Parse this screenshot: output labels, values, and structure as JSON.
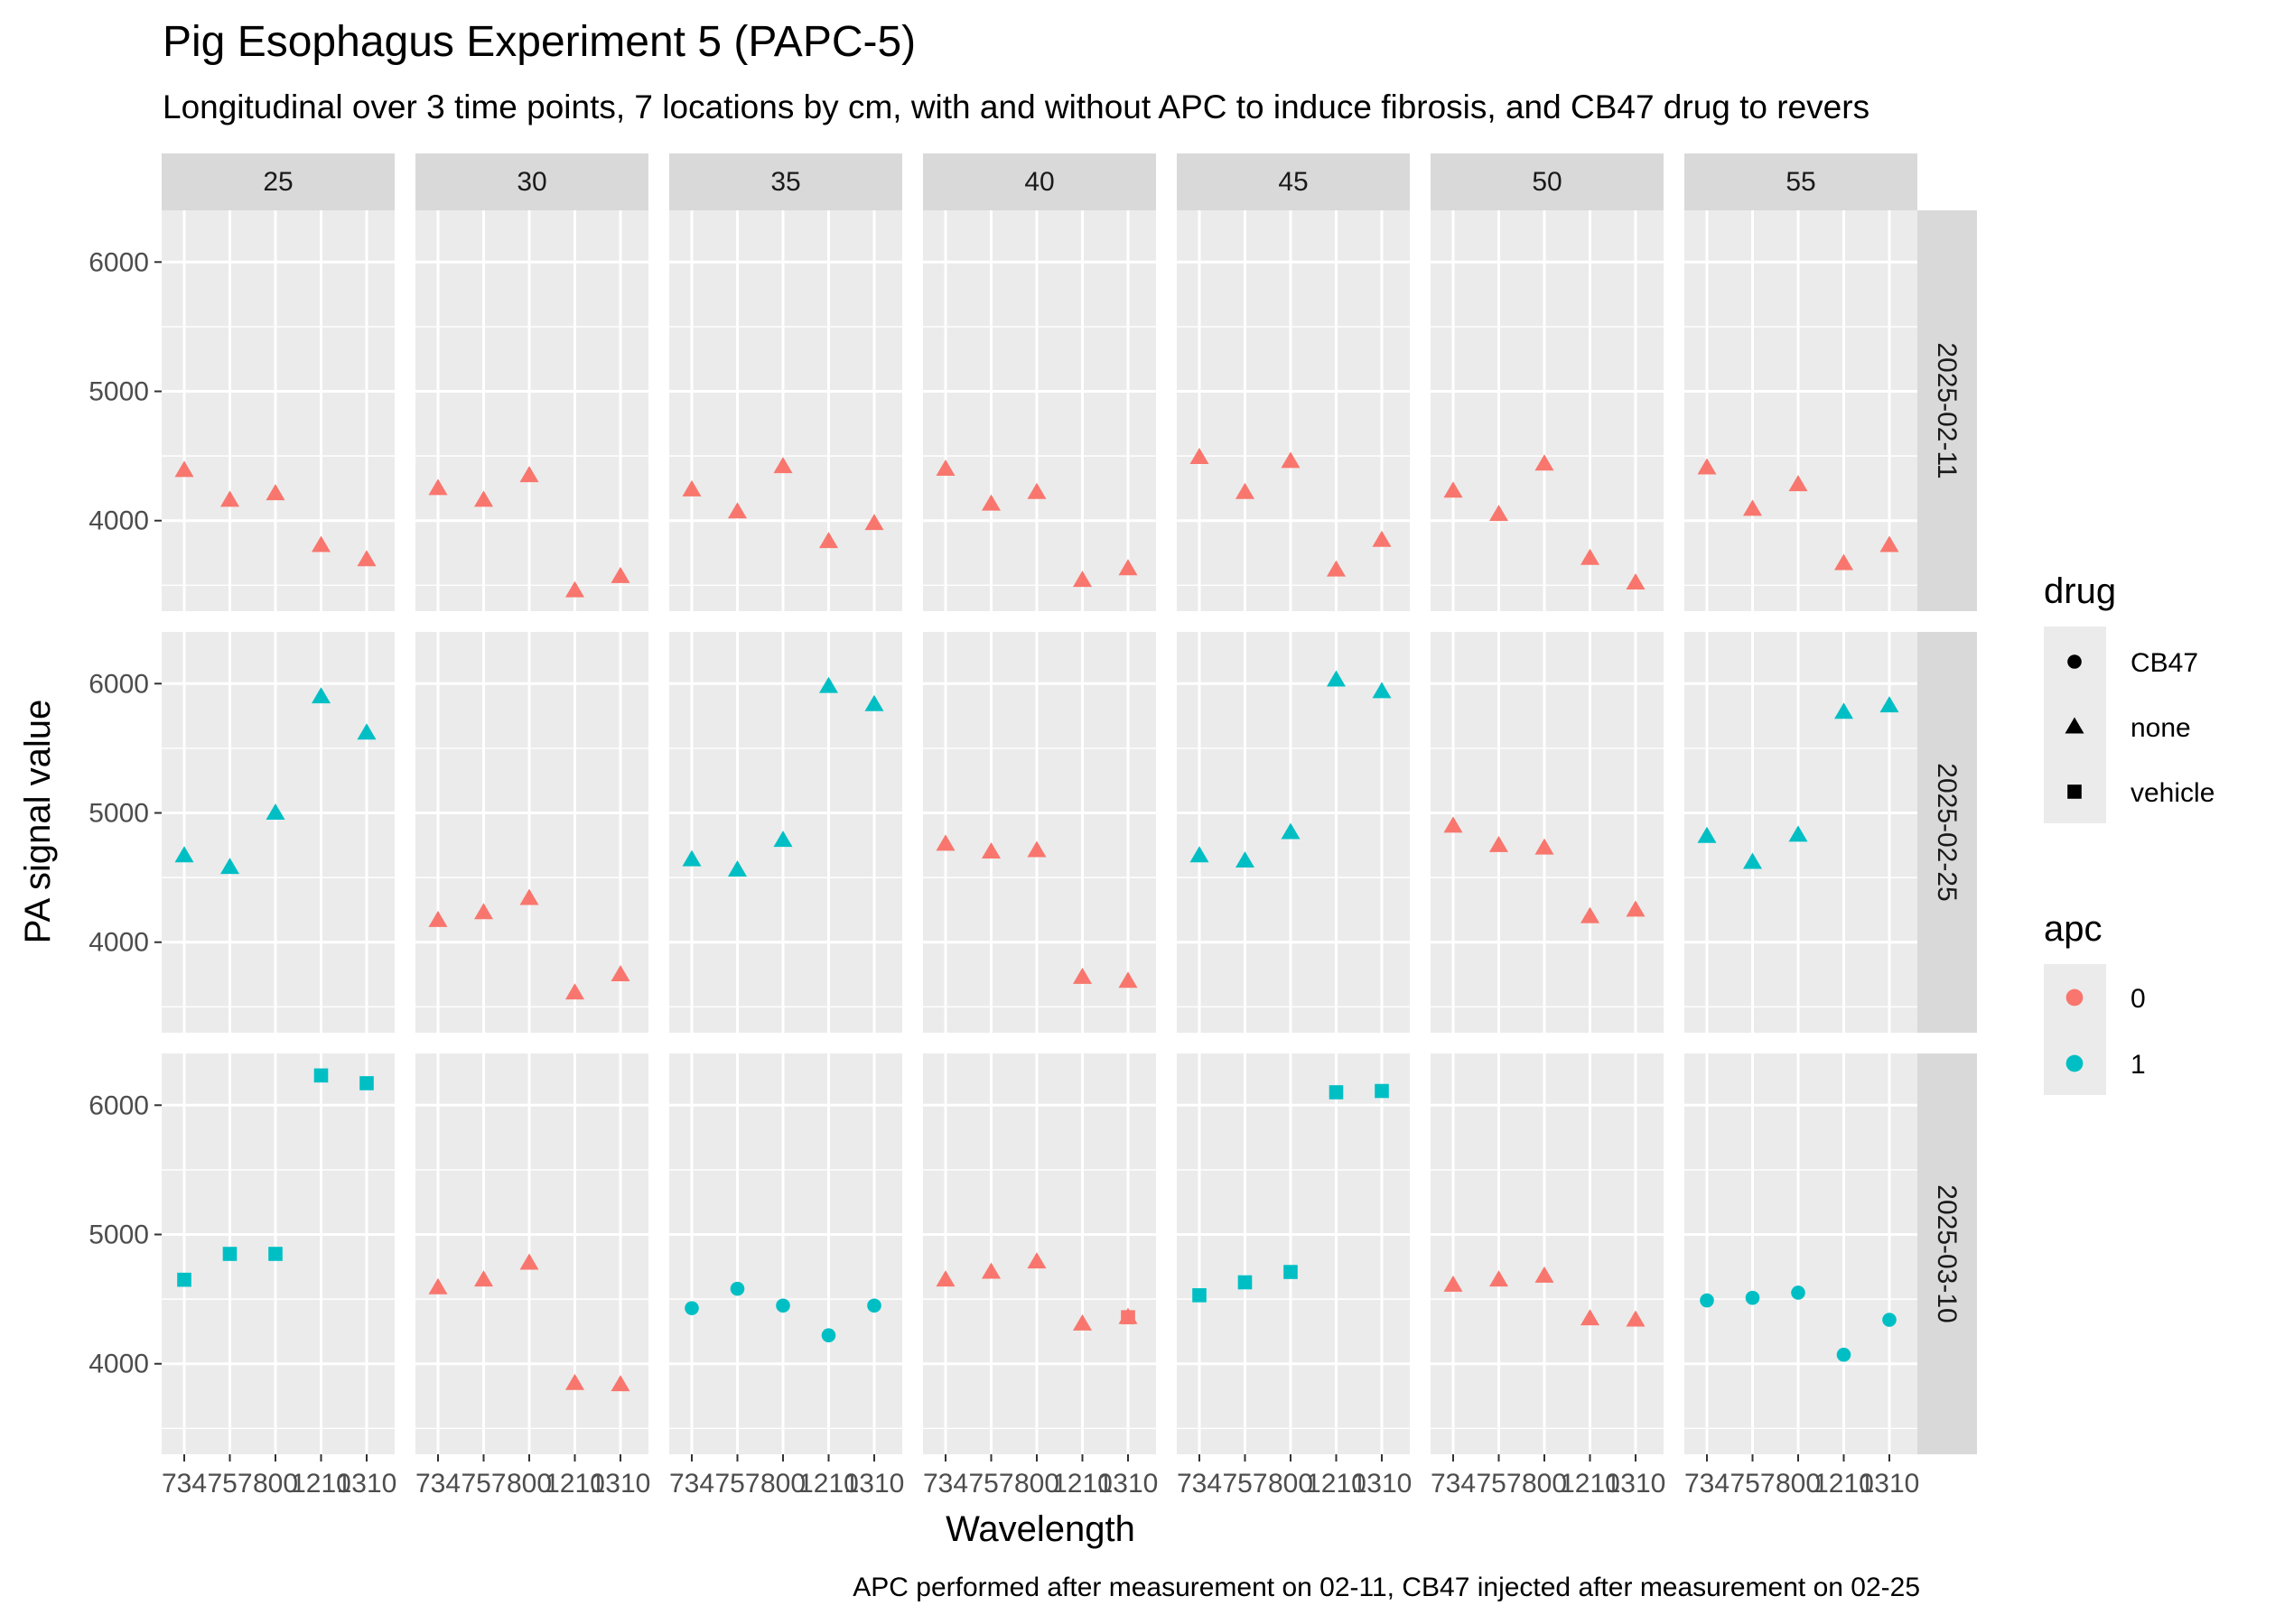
{
  "chart_data": {
    "type": "scatter",
    "title": "Pig Esophagus Experiment 5 (PAPC-5)",
    "subtitle": "Longitudinal over 3 time points, 7 locations by cm, with and without APC to induce fibrosis, and CB47 drug to revers",
    "xlabel": "Wavelength",
    "ylabel": "PA signal value",
    "caption": "APC performed after measurement on 02-11, CB47 injected after measurement on 02-25",
    "x_categories": [
      "734",
      "757",
      "800",
      "1210",
      "1310"
    ],
    "y_ticks": [
      4000,
      5000,
      6000
    ],
    "ylim": [
      3300,
      6400
    ],
    "facet_columns": [
      "25",
      "30",
      "35",
      "40",
      "45",
      "50",
      "55"
    ],
    "facet_rows": [
      "2025-02-11",
      "2025-02-25",
      "2025-03-10"
    ],
    "legend": {
      "drug": {
        "title": "drug",
        "items": [
          {
            "label": "CB47",
            "shape": "circle"
          },
          {
            "label": "none",
            "shape": "triangle"
          },
          {
            "label": "vehicle",
            "shape": "square"
          }
        ]
      },
      "apc": {
        "title": "apc",
        "items": [
          {
            "label": "0",
            "color": "#F8766D"
          },
          {
            "label": "1",
            "color": "#00BFC4"
          }
        ]
      }
    },
    "panels": [
      {
        "row": "2025-02-11",
        "col": "25",
        "apc": "0",
        "drug": "none",
        "values": [
          4390,
          4160,
          4210,
          3810,
          3700
        ]
      },
      {
        "row": "2025-02-11",
        "col": "30",
        "apc": "0",
        "drug": "none",
        "values": [
          4250,
          4160,
          4350,
          3460,
          3570
        ]
      },
      {
        "row": "2025-02-11",
        "col": "35",
        "apc": "0",
        "drug": "none",
        "values": [
          4240,
          4070,
          4420,
          3840,
          3980
        ]
      },
      {
        "row": "2025-02-11",
        "col": "40",
        "apc": "0",
        "drug": "none",
        "values": [
          4400,
          4130,
          4220,
          3540,
          3630
        ]
      },
      {
        "row": "2025-02-11",
        "col": "45",
        "apc": "0",
        "drug": "none",
        "values": [
          4490,
          4220,
          4460,
          3620,
          3850
        ]
      },
      {
        "row": "2025-02-11",
        "col": "50",
        "apc": "0",
        "drug": "none",
        "values": [
          4230,
          4050,
          4440,
          3710,
          3520
        ]
      },
      {
        "row": "2025-02-11",
        "col": "55",
        "apc": "0",
        "drug": "none",
        "values": [
          4410,
          4090,
          4280,
          3670,
          3810
        ]
      },
      {
        "row": "2025-02-25",
        "col": "25",
        "apc": "1",
        "drug": "none",
        "values": [
          4670,
          4580,
          5000,
          5900,
          5620
        ]
      },
      {
        "row": "2025-02-25",
        "col": "30",
        "apc": "0",
        "drug": "none",
        "values": [
          4170,
          4230,
          4340,
          3610,
          3750
        ]
      },
      {
        "row": "2025-02-25",
        "col": "35",
        "apc": "1",
        "drug": "none",
        "values": [
          4640,
          4560,
          4790,
          5980,
          5840
        ]
      },
      {
        "row": "2025-02-25",
        "col": "40",
        "apc": "0",
        "drug": "none",
        "values": [
          4760,
          4700,
          4710,
          3730,
          3700
        ]
      },
      {
        "row": "2025-02-25",
        "col": "45",
        "apc": "1",
        "drug": "none",
        "values": [
          4670,
          4630,
          4850,
          6030,
          5940
        ]
      },
      {
        "row": "2025-02-25",
        "col": "50",
        "apc": "0",
        "drug": "none",
        "values": [
          4900,
          4750,
          4730,
          4200,
          4250
        ]
      },
      {
        "row": "2025-02-25",
        "col": "55",
        "apc": "1",
        "drug": "none",
        "values": [
          4820,
          4620,
          4830,
          5780,
          5830
        ]
      },
      {
        "row": "2025-03-10",
        "col": "25",
        "apc": "1",
        "drug": "vehicle",
        "values": [
          4650,
          4850,
          4850,
          6230,
          6170
        ]
      },
      {
        "row": "2025-03-10",
        "col": "30",
        "apc": "0",
        "drug": "none",
        "values": [
          4590,
          4650,
          4780,
          3850,
          3840
        ]
      },
      {
        "row": "2025-03-10",
        "col": "35",
        "apc": "1",
        "drug": "CB47",
        "values": [
          4430,
          4580,
          4450,
          4220,
          4450
        ]
      },
      {
        "row": "2025-03-10",
        "col": "40",
        "apc": "0",
        "drug": "none",
        "values": [
          4650,
          4710,
          4790,
          4310,
          4360
        ]
      },
      {
        "row": "2025-03-10",
        "col": "40",
        "apc": "0",
        "drug": "vehicle",
        "values": [
          null,
          null,
          null,
          null,
          null
        ]
      },
      {
        "row": "2025-03-10",
        "col": "45",
        "apc": "1",
        "drug": "vehicle",
        "values": [
          4530,
          4630,
          4710,
          6100,
          6110
        ]
      },
      {
        "row": "2025-03-10",
        "col": "50",
        "apc": "0",
        "drug": "none",
        "values": [
          4610,
          4650,
          4680,
          4350,
          4340
        ]
      },
      {
        "row": "2025-03-10",
        "col": "55",
        "apc": "1",
        "drug": "CB47",
        "values": [
          4490,
          4510,
          4550,
          4070,
          4340
        ]
      }
    ]
  }
}
